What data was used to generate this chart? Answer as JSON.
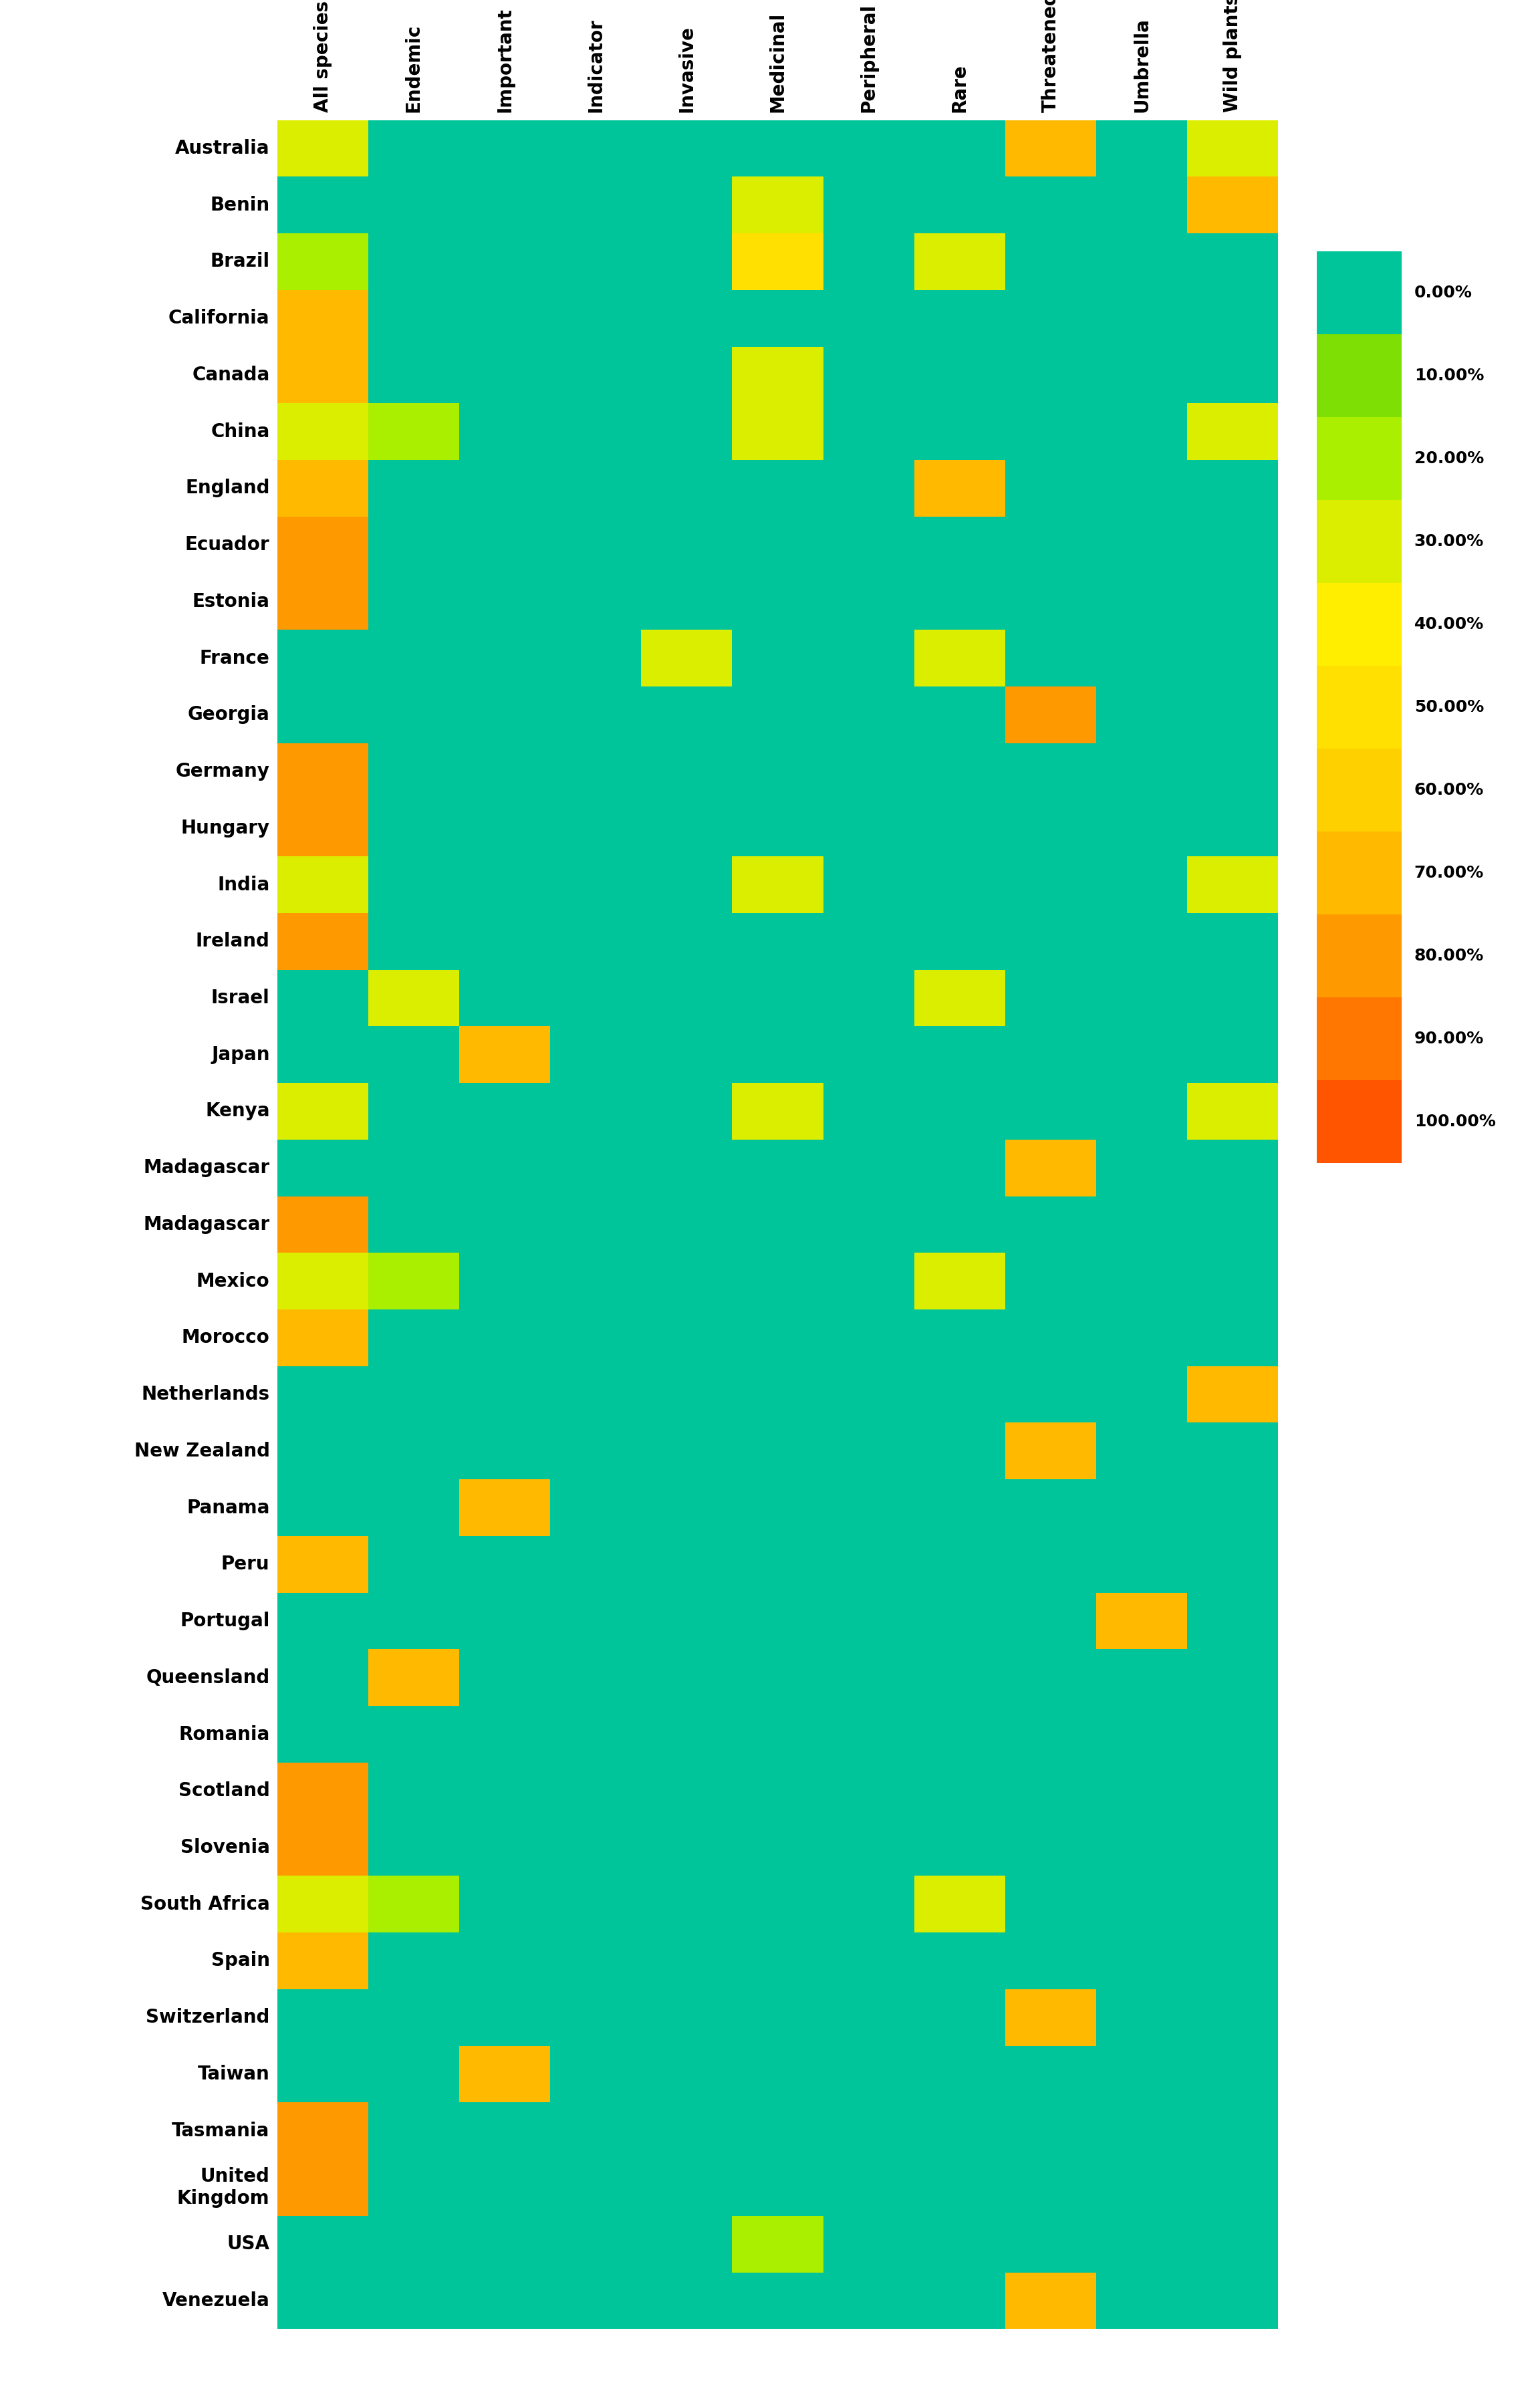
{
  "columns": [
    "All species",
    "Endemic",
    "Important",
    "Indicator",
    "Invasive",
    "Medicinal",
    "Peripheral",
    "Rare",
    "Threatened",
    "Umbrella",
    "Wild plants"
  ],
  "rows": [
    "Australia",
    "Benin",
    "Brazil",
    "California",
    "Canada",
    "China",
    "England",
    "Ecuador",
    "Estonia",
    "France",
    "Georgia",
    "Germany",
    "Hungary",
    "India",
    "Ireland",
    "Israel",
    "Japan",
    "Kenya",
    "Madagascar",
    "Madagascar",
    "Mexico",
    "Morocco",
    "Netherlands",
    "New Zealand",
    "Panama",
    "Peru",
    "Portugal",
    "Queensland",
    "Romania",
    "Scotland",
    "Slovenia",
    "South Africa",
    "Spain",
    "Switzerland",
    "Taiwan",
    "Tasmania",
    "United\nKingdom",
    "USA",
    "Venezuela"
  ],
  "values": [
    [
      30,
      0,
      0,
      0,
      0,
      0,
      0,
      0,
      70,
      0,
      30
    ],
    [
      0,
      0,
      0,
      0,
      0,
      30,
      0,
      0,
      0,
      0,
      70
    ],
    [
      20,
      0,
      0,
      0,
      0,
      50,
      0,
      30,
      0,
      0,
      0
    ],
    [
      70,
      0,
      0,
      0,
      0,
      0,
      0,
      0,
      0,
      0,
      0
    ],
    [
      70,
      0,
      0,
      0,
      0,
      30,
      0,
      0,
      0,
      0,
      0
    ],
    [
      30,
      20,
      0,
      0,
      0,
      30,
      0,
      0,
      0,
      0,
      30
    ],
    [
      70,
      0,
      0,
      0,
      0,
      0,
      0,
      70,
      0,
      0,
      0
    ],
    [
      80,
      0,
      0,
      0,
      0,
      0,
      0,
      0,
      0,
      0,
      0
    ],
    [
      80,
      0,
      0,
      0,
      0,
      0,
      0,
      0,
      0,
      0,
      0
    ],
    [
      0,
      0,
      0,
      0,
      30,
      0,
      0,
      30,
      0,
      0,
      0
    ],
    [
      0,
      0,
      0,
      0,
      0,
      0,
      0,
      0,
      80,
      0,
      0
    ],
    [
      80,
      0,
      0,
      0,
      0,
      0,
      0,
      0,
      0,
      0,
      0
    ],
    [
      80,
      0,
      0,
      0,
      0,
      0,
      0,
      0,
      0,
      0,
      0
    ],
    [
      30,
      0,
      0,
      0,
      0,
      30,
      0,
      0,
      0,
      0,
      30
    ],
    [
      80,
      0,
      0,
      0,
      0,
      0,
      0,
      0,
      0,
      0,
      0
    ],
    [
      0,
      30,
      0,
      0,
      0,
      0,
      0,
      30,
      0,
      0,
      0
    ],
    [
      0,
      0,
      70,
      0,
      0,
      0,
      0,
      0,
      0,
      0,
      0
    ],
    [
      30,
      0,
      0,
      0,
      0,
      30,
      0,
      0,
      0,
      0,
      30
    ],
    [
      0,
      0,
      0,
      0,
      0,
      0,
      0,
      0,
      70,
      0,
      0
    ],
    [
      80,
      0,
      0,
      0,
      0,
      0,
      0,
      0,
      0,
      0,
      0
    ],
    [
      30,
      20,
      0,
      0,
      0,
      0,
      0,
      30,
      0,
      0,
      0
    ],
    [
      70,
      0,
      0,
      0,
      0,
      0,
      0,
      0,
      0,
      0,
      0
    ],
    [
      0,
      0,
      0,
      0,
      0,
      0,
      0,
      0,
      0,
      0,
      70
    ],
    [
      0,
      0,
      0,
      0,
      0,
      0,
      0,
      0,
      70,
      0,
      0
    ],
    [
      0,
      0,
      70,
      0,
      0,
      0,
      0,
      0,
      0,
      0,
      0
    ],
    [
      70,
      0,
      0,
      0,
      0,
      0,
      0,
      0,
      0,
      0,
      0
    ],
    [
      0,
      0,
      0,
      0,
      0,
      0,
      0,
      0,
      0,
      70,
      0
    ],
    [
      0,
      70,
      0,
      0,
      0,
      0,
      0,
      0,
      0,
      0,
      0
    ],
    [
      0,
      0,
      0,
      0,
      0,
      0,
      0,
      0,
      0,
      0,
      0
    ],
    [
      80,
      0,
      0,
      0,
      0,
      0,
      0,
      0,
      0,
      0,
      0
    ],
    [
      80,
      0,
      0,
      0,
      0,
      0,
      0,
      0,
      0,
      0,
      0
    ],
    [
      30,
      20,
      0,
      0,
      0,
      0,
      0,
      30,
      0,
      0,
      0
    ],
    [
      70,
      0,
      0,
      0,
      0,
      0,
      0,
      0,
      0,
      0,
      0
    ],
    [
      0,
      0,
      0,
      0,
      0,
      0,
      0,
      0,
      70,
      0,
      0
    ],
    [
      0,
      0,
      70,
      0,
      0,
      0,
      0,
      0,
      0,
      0,
      0
    ],
    [
      80,
      0,
      0,
      0,
      0,
      0,
      0,
      0,
      0,
      0,
      0
    ],
    [
      80,
      0,
      0,
      0,
      0,
      0,
      0,
      0,
      0,
      0,
      0
    ],
    [
      0,
      0,
      0,
      0,
      0,
      20,
      0,
      0,
      0,
      0,
      0
    ],
    [
      0,
      0,
      0,
      0,
      0,
      0,
      0,
      0,
      70,
      0,
      0
    ]
  ],
  "legend_labels": [
    "0.00%",
    "10.00%",
    "20.00%",
    "30.00%",
    "40.00%",
    "50.00%",
    "60.00%",
    "70.00%",
    "80.00%",
    "90.00%",
    "100.00%"
  ],
  "legend_values": [
    0,
    10,
    20,
    30,
    40,
    50,
    60,
    70,
    80,
    90,
    100
  ],
  "background_color": "#ffffff",
  "fig_width": 23.04,
  "fig_height": 35.92
}
